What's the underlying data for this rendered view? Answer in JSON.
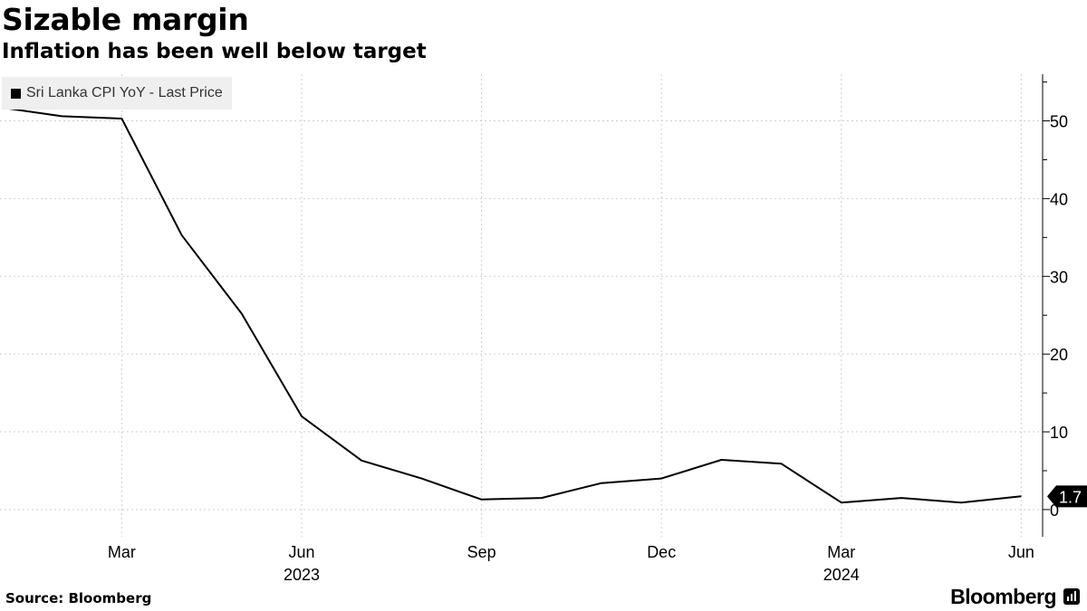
{
  "header": {
    "title": "Sizable margin",
    "subtitle": "Inflation has been well below target"
  },
  "footer": {
    "source": "Source: Bloomberg",
    "brand": "Bloomberg"
  },
  "colors": {
    "line": "#000000",
    "grid": "#cfcfcf",
    "legend_bg": "#efefef"
  },
  "chart_data": {
    "type": "line",
    "title": "Sizable margin",
    "subtitle": "Inflation has been well below target",
    "series": [
      {
        "name": "Sri Lanka CPI YoY - Last Price",
        "x": [
          "2023-01",
          "2023-02",
          "2023-03",
          "2023-04",
          "2023-05",
          "2023-06",
          "2023-07",
          "2023-08",
          "2023-09",
          "2023-10",
          "2023-11",
          "2023-12",
          "2024-01",
          "2024-02",
          "2024-03",
          "2024-04",
          "2024-05",
          "2024-06"
        ],
        "values": [
          51.7,
          50.6,
          50.3,
          35.3,
          25.2,
          12.0,
          6.3,
          4.0,
          1.3,
          1.5,
          3.4,
          4.0,
          6.4,
          5.9,
          0.9,
          1.5,
          0.9,
          1.7
        ]
      }
    ],
    "last_value_label": "1.7",
    "y_axis": {
      "position": "right",
      "ylim": [
        -3.5,
        56
      ],
      "ticks": [
        0,
        10,
        20,
        30,
        40,
        50
      ],
      "tick_labels": [
        "0",
        "10",
        "20",
        "30",
        "40",
        "50"
      ]
    },
    "x_ticks": [
      {
        "month": "2023-03",
        "label": "Mar"
      },
      {
        "month": "2023-06",
        "label": "Jun"
      },
      {
        "month": "2023-09",
        "label": "Sep"
      },
      {
        "month": "2023-12",
        "label": "Dec"
      },
      {
        "month": "2024-03",
        "label": "Mar"
      },
      {
        "month": "2024-06",
        "label": "Jun"
      }
    ],
    "year_labels": [
      {
        "month": "2023-06",
        "label": "2023"
      },
      {
        "month": "2024-03",
        "label": "2024"
      }
    ],
    "legend": {
      "position": "top-left",
      "entries": [
        "Sri Lanka CPI YoY - Last Price"
      ]
    },
    "grid": true
  }
}
